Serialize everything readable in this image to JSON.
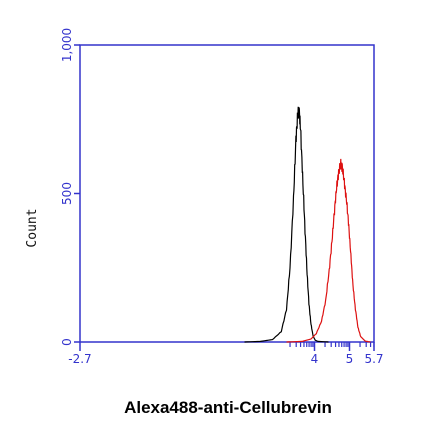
{
  "chart_data": {
    "type": "line",
    "title": "",
    "xlabel": "Alexa488-anti-Cellubrevin",
    "ylabel": "Count",
    "x_scale": "log",
    "xlim": [
      -2.7,
      5.7
    ],
    "ylim": [
      0,
      1000
    ],
    "x_tick_labels": [
      "-2.7",
      "4",
      "5",
      "5.7"
    ],
    "y_tick_labels": [
      "0",
      "500",
      "1,000"
    ],
    "x_tick_positions": [
      -2.7,
      4,
      5,
      5.7
    ],
    "y_ticks": [
      0,
      500,
      1000
    ],
    "grid": false,
    "colors": {
      "axis": "#3333cc",
      "control": "#000000",
      "stained": "#dd1111"
    },
    "series": [
      {
        "color": "#000000",
        "points": [
          [
            2.0,
            0
          ],
          [
            2.45,
            2
          ],
          [
            2.8,
            8
          ],
          [
            3.05,
            35
          ],
          [
            3.2,
            110
          ],
          [
            3.3,
            250
          ],
          [
            3.4,
            480
          ],
          [
            3.47,
            680
          ],
          [
            3.52,
            765
          ],
          [
            3.56,
            780
          ],
          [
            3.6,
            720
          ],
          [
            3.66,
            560
          ],
          [
            3.72,
            400
          ],
          [
            3.78,
            250
          ],
          [
            3.84,
            130
          ],
          [
            3.9,
            60
          ],
          [
            3.96,
            20
          ],
          [
            4.02,
            6
          ],
          [
            4.1,
            2
          ],
          [
            4.4,
            0
          ]
        ]
      },
      {
        "color": "#dd1111",
        "points": [
          [
            3.2,
            0
          ],
          [
            3.65,
            2
          ],
          [
            3.9,
            10
          ],
          [
            4.05,
            28
          ],
          [
            4.2,
            70
          ],
          [
            4.32,
            140
          ],
          [
            4.42,
            240
          ],
          [
            4.5,
            340
          ],
          [
            4.57,
            440
          ],
          [
            4.63,
            520
          ],
          [
            4.69,
            570
          ],
          [
            4.75,
            600
          ],
          [
            4.8,
            585
          ],
          [
            4.86,
            530
          ],
          [
            4.92,
            470
          ],
          [
            4.98,
            390
          ],
          [
            5.04,
            290
          ],
          [
            5.1,
            190
          ],
          [
            5.17,
            110
          ],
          [
            5.24,
            50
          ],
          [
            5.32,
            18
          ],
          [
            5.45,
            3
          ],
          [
            5.6,
            0
          ]
        ]
      }
    ]
  }
}
